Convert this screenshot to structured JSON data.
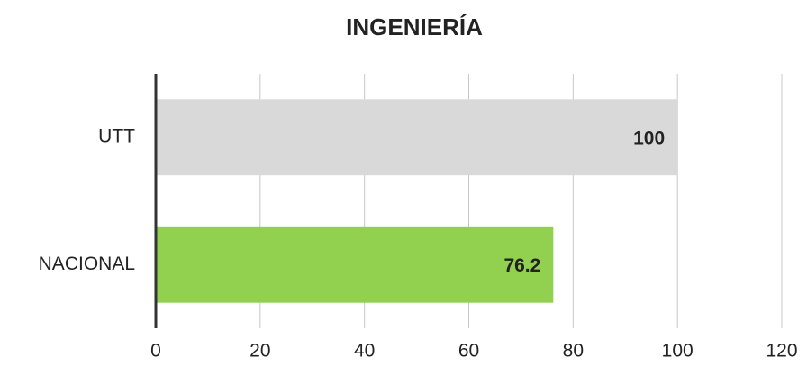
{
  "chart_data": {
    "type": "hbar",
    "title": "INGENIERÍA",
    "categories": [
      "UTT",
      "NACIONAL"
    ],
    "values": [
      100,
      76.2
    ],
    "colors": [
      "#d9d9d9",
      "#92d050"
    ],
    "xlim": [
      0,
      120
    ],
    "xticks": [
      0,
      20,
      40,
      60,
      80,
      100,
      120
    ],
    "grid": true
  }
}
